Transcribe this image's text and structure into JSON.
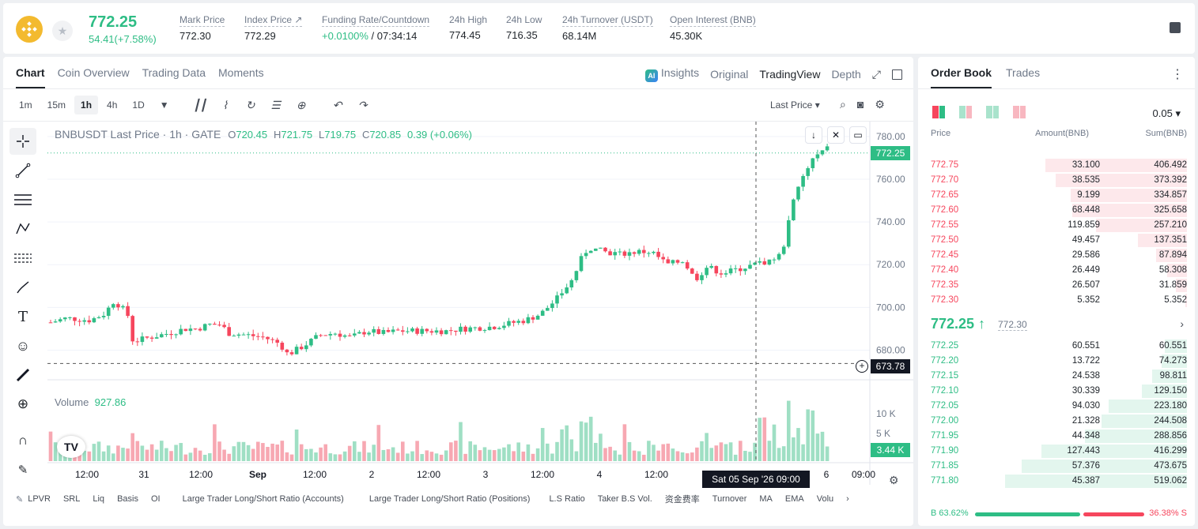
{
  "header": {
    "last_price": "772.25",
    "change": "54.41(+7.58%)",
    "stats": [
      {
        "label": "Mark Price",
        "value": "772.30"
      },
      {
        "label": "Index Price ↗",
        "value": "772.29"
      },
      {
        "label": "Funding Rate/Countdown",
        "value_green": "+0.0100%",
        "value": " / 07:34:14"
      },
      {
        "label": "24h High",
        "value": "774.45"
      },
      {
        "label": "24h Low",
        "value": "716.35"
      },
      {
        "label": "24h Turnover (USDT)",
        "value": "68.14M"
      },
      {
        "label": "Open Interest (BNB)",
        "value": "45.30K"
      }
    ]
  },
  "chart_panel": {
    "tabs": [
      "Chart",
      "Coin Overview",
      "Trading Data",
      "Moments"
    ],
    "right_tabs": {
      "insights": "Insights",
      "original": "Original",
      "tradingview": "TradingView",
      "depth": "Depth"
    },
    "timeframes": [
      "1m",
      "15m",
      "1h",
      "4h",
      "1D"
    ],
    "last_price_select": "Last Price ▾",
    "ohlc": {
      "title": "BNBUSDT Last Price · 1h · GATE",
      "o": "O",
      "o_val": "720.45",
      "h": "H",
      "h_val": "721.75",
      "l": "L",
      "l_val": "719.75",
      "c": "C",
      "c_val": "720.85",
      "chg": "0.39 (+0.06%)"
    },
    "volume_label": "Volume",
    "volume_value": "927.86",
    "price_tag": "772.25",
    "cross_tag": "673.78",
    "vol_tag": "3.44 K",
    "date_tag": "Sat 05 Sep '26   09:00",
    "indicators": [
      "LPVR",
      "SRL",
      "Liq",
      "Basis",
      "OI",
      "Large Trader Long/Short Ratio (Accounts)",
      "Large Trader Long/Short Ratio (Positions)",
      "L.S Ratio",
      "Taker B.S Vol.",
      "资金费率",
      "Turnover",
      "MA",
      "EMA",
      "Volu"
    ]
  },
  "chart_data": {
    "type": "candlestick",
    "title": "BNBUSDT Last Price · 1h · GATE",
    "y_ticks": [
      780,
      760,
      740,
      720,
      700,
      680
    ],
    "ylim": [
      668,
      784
    ],
    "volume_ticks": [
      "10 K",
      "5 K"
    ],
    "x_labels": [
      "12:00",
      "31",
      "12:00",
      "Sep",
      "12:00",
      "2",
      "12:00",
      "3",
      "12:00",
      "4",
      "12:00",
      "6",
      "09:00"
    ],
    "up_color": "#2ebd85",
    "down_color": "#f6465d"
  },
  "orderbook": {
    "tabs": [
      "Order Book",
      "Trades"
    ],
    "tick_size": "0.05 ▾",
    "headers": [
      "Price",
      "Amount(BNB)",
      "Sum(BNB)"
    ],
    "asks": [
      {
        "price": "772.75",
        "amount": "33.100",
        "sum": "406.492",
        "fill": 0.78
      },
      {
        "price": "772.70",
        "amount": "38.535",
        "sum": "373.392",
        "fill": 0.72
      },
      {
        "price": "772.65",
        "amount": "9.199",
        "sum": "334.857",
        "fill": 0.64
      },
      {
        "price": "772.60",
        "amount": "68.448",
        "sum": "325.658",
        "fill": 0.63
      },
      {
        "price": "772.55",
        "amount": "119.859",
        "sum": "257.210",
        "fill": 0.5
      },
      {
        "price": "772.50",
        "amount": "49.457",
        "sum": "137.351",
        "fill": 0.27
      },
      {
        "price": "772.45",
        "amount": "29.586",
        "sum": "87.894",
        "fill": 0.17
      },
      {
        "price": "772.40",
        "amount": "26.449",
        "sum": "58.308",
        "fill": 0.11
      },
      {
        "price": "772.35",
        "amount": "26.507",
        "sum": "31.859",
        "fill": 0.06
      },
      {
        "price": "772.30",
        "amount": "5.352",
        "sum": "5.352",
        "fill": 0.01
      }
    ],
    "mid_price": "772.25 ↑",
    "mark": "772.30",
    "bids": [
      {
        "price": "772.25",
        "amount": "60.551",
        "sum": "60.551",
        "fill": 0.12
      },
      {
        "price": "772.20",
        "amount": "13.722",
        "sum": "74.273",
        "fill": 0.14
      },
      {
        "price": "772.15",
        "amount": "24.538",
        "sum": "98.811",
        "fill": 0.19
      },
      {
        "price": "772.10",
        "amount": "30.339",
        "sum": "129.150",
        "fill": 0.25
      },
      {
        "price": "772.05",
        "amount": "94.030",
        "sum": "223.180",
        "fill": 0.43
      },
      {
        "price": "772.00",
        "amount": "21.328",
        "sum": "244.508",
        "fill": 0.47
      },
      {
        "price": "771.95",
        "amount": "44.348",
        "sum": "288.856",
        "fill": 0.56
      },
      {
        "price": "771.90",
        "amount": "127.443",
        "sum": "416.299",
        "fill": 0.8
      },
      {
        "price": "771.85",
        "amount": "57.376",
        "sum": "473.675",
        "fill": 0.91
      },
      {
        "price": "771.80",
        "amount": "45.387",
        "sum": "519.062",
        "fill": 1.0
      }
    ],
    "buy_ratio": "B 63.62%",
    "sell_ratio": "36.38% S"
  }
}
